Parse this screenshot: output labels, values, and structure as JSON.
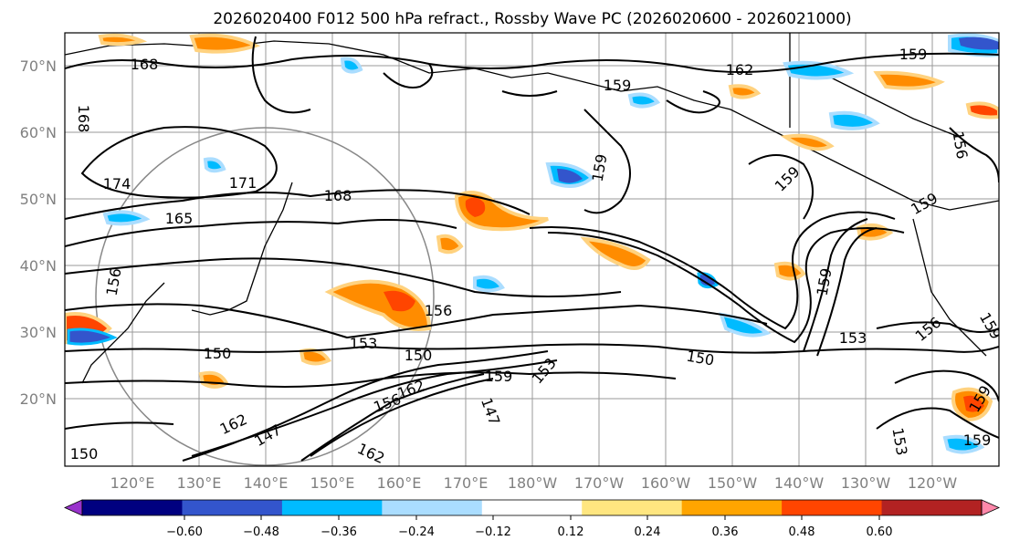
{
  "figure": {
    "title": "2026020400 F012 500 hPa refract., Rossby Wave PC (2026020600 - 2026021000)"
  },
  "map": {
    "lat_labels": [
      "70°N",
      "60°N",
      "50°N",
      "40°N",
      "30°N",
      "20°N"
    ],
    "lon_labels": [
      "120°E",
      "130°E",
      "140°E",
      "150°E",
      "160°E",
      "170°E",
      "180°W",
      "170°W",
      "160°W",
      "150°W",
      "140°W",
      "130°W",
      "120°W"
    ],
    "contour_labels": [
      "168",
      "162",
      "159",
      "168",
      "174",
      "171",
      "165",
      "168",
      "159",
      "159",
      "159",
      "159",
      "156",
      "156",
      "150",
      "153",
      "150",
      "150",
      "159",
      "153",
      "153",
      "147",
      "156",
      "162",
      "162",
      "147",
      "162",
      "150",
      "159",
      "159",
      "156",
      "153",
      "159",
      "156",
      "159"
    ]
  },
  "colorbar": {
    "ticks": [
      "−0.60",
      "−0.48",
      "−0.36",
      "−0.24",
      "−0.12",
      "0.12",
      "0.24",
      "0.36",
      "0.48",
      "0.60"
    ],
    "colors": [
      "#9933cc",
      "#000080",
      "#3355cc",
      "#00bbff",
      "#aaddff",
      "#ffffff",
      "#ffe680",
      "#ffa500",
      "#ff4500",
      "#b22222",
      "#ff88aa"
    ]
  }
}
